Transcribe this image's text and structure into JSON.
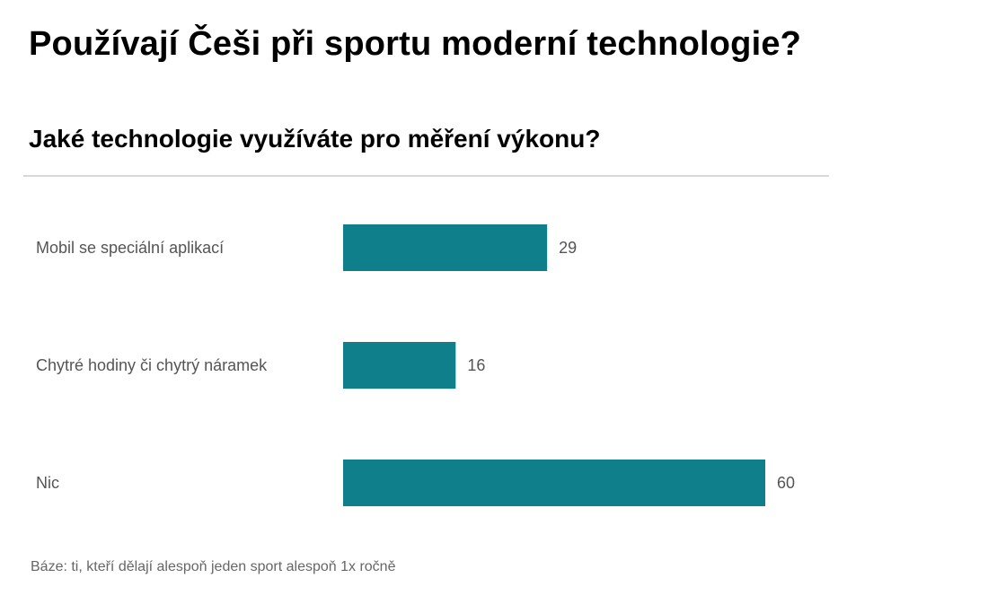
{
  "title": "Používají Češi při sportu moderní technologie?",
  "chart_data": {
    "type": "bar",
    "orientation": "horizontal",
    "title": "Jaké technologie využíváte pro měření výkonu?",
    "categories": [
      "Mobil se speciální aplikací",
      "Chytré hodiny či chytrý náramek",
      "Nic"
    ],
    "values": [
      29,
      16,
      60
    ],
    "xlim": [
      0,
      100
    ],
    "grid": false,
    "legend": "none",
    "bar_color": "#0f7f8b"
  },
  "footnote": "Báze: ti, kteří dělají alespoň jeden sport alespoň 1x ročně"
}
